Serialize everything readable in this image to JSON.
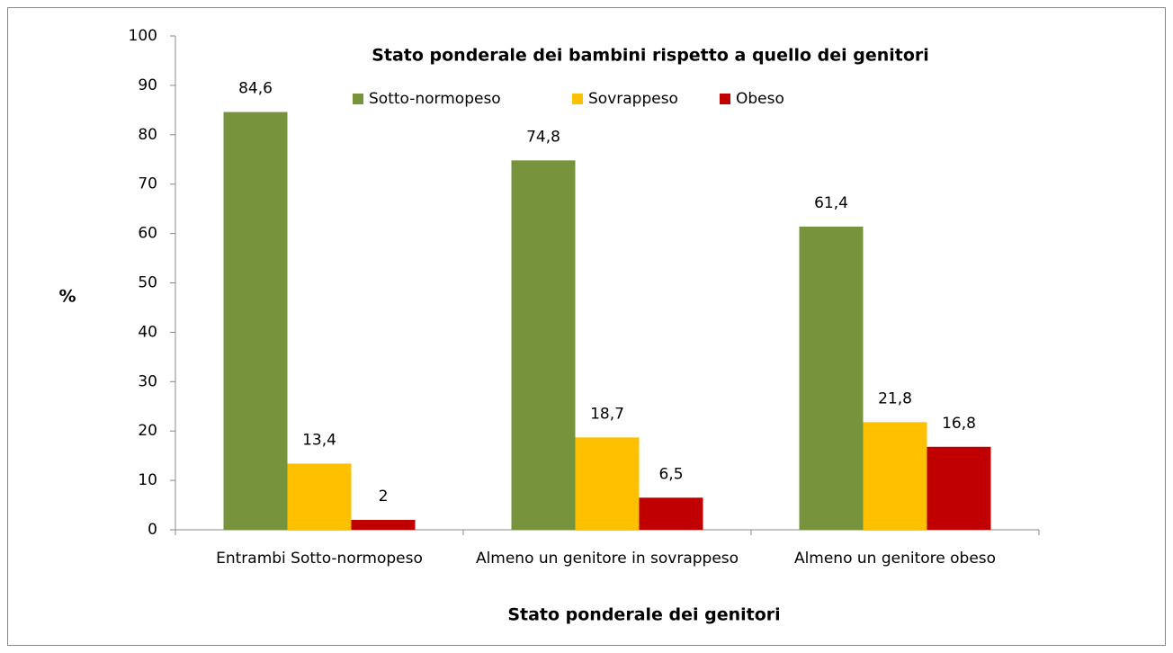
{
  "chart_data": {
    "type": "bar",
    "title": "Stato ponderale dei bambini rispetto a quello dei genitori",
    "xlabel": "Stato ponderale dei genitori",
    "ylabel": "%",
    "categories": [
      "Entrambi Sotto-normopeso",
      "Almeno un genitore in sovrappeso",
      "Almeno un genitore obeso"
    ],
    "series": [
      {
        "name": "Sotto-normopeso",
        "color": "#77933c",
        "values": [
          84.6,
          74.8,
          61.4
        ],
        "value_labels": [
          "84,6",
          "74,8",
          "61,4"
        ]
      },
      {
        "name": "Sovrappeso",
        "color": "#ffc000",
        "values": [
          13.4,
          18.7,
          21.8
        ],
        "value_labels": [
          "13,4",
          "18,7",
          "21,8"
        ]
      },
      {
        "name": "Obeso",
        "color": "#c00000",
        "values": [
          2,
          6.5,
          16.8
        ],
        "value_labels": [
          "2",
          "6,5",
          "16,8"
        ]
      }
    ],
    "ylim": [
      0,
      100
    ],
    "yticks": [
      0,
      10,
      20,
      30,
      40,
      50,
      60,
      70,
      80,
      90,
      100
    ],
    "grid": false,
    "legend": "top"
  }
}
